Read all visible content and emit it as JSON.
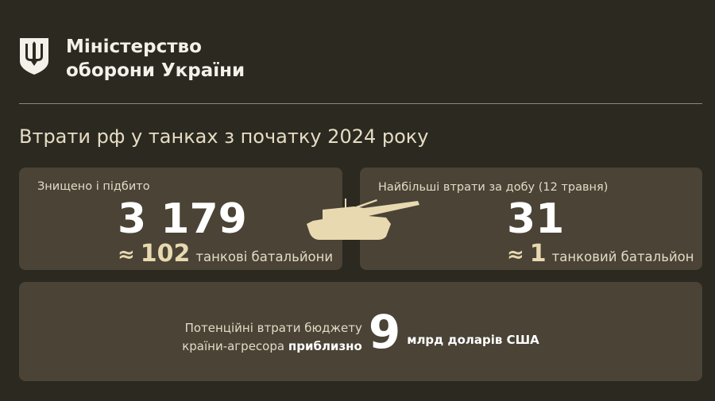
{
  "header": {
    "logo_icon": "trident-shield-icon",
    "org_line1": "Міністерство",
    "org_line2": "оборони України"
  },
  "subtitle": "Втрати рф у танках з початку 2024 року",
  "colors": {
    "background": "#2b2920",
    "card": "#4a4336",
    "accent": "#e8d9b0",
    "text": "#ffffff"
  },
  "card_total": {
    "label": "Знищено і підбито",
    "value": "3 179",
    "approx_symbol": "≈",
    "approx_value": "102",
    "unit": "танкові батальйони"
  },
  "tank_icon": "tank-silhouette-icon",
  "card_daily": {
    "label": "Найбільші втрати за добу (12 травня)",
    "value": "31",
    "approx_symbol": "≈",
    "approx_value": "1",
    "unit": "танковий батальйон"
  },
  "card_budget": {
    "line1": "Потенційні втрати бюджету",
    "line2_prefix": "країни-агресора",
    "line2_bold": "приблизно",
    "value": "9",
    "unit": "млрд доларів США"
  }
}
